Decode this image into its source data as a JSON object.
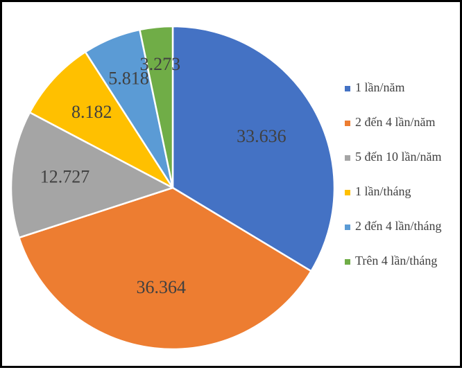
{
  "chart_data": {
    "type": "pie",
    "title": "",
    "categories": [
      "1 lần/năm",
      "2 đến 4 lần/năm",
      "5 đến 10 lần/năm",
      "1 lần/tháng",
      "2 đến 4 lần/tháng",
      "Trên 4 lần/tháng"
    ],
    "values": [
      33.636,
      36.364,
      12.727,
      8.182,
      5.818,
      3.273
    ],
    "labels": [
      "33.636",
      "36.364",
      "12.727",
      "8.182",
      "5.818",
      "3.273"
    ],
    "colors": [
      "#4472C4",
      "#ED7D31",
      "#A5A5A5",
      "#FFC000",
      "#5B9BD5",
      "#70AD47"
    ],
    "start_angle": "12 o'clock, clockwise",
    "legend_position": "right",
    "grid": false
  }
}
